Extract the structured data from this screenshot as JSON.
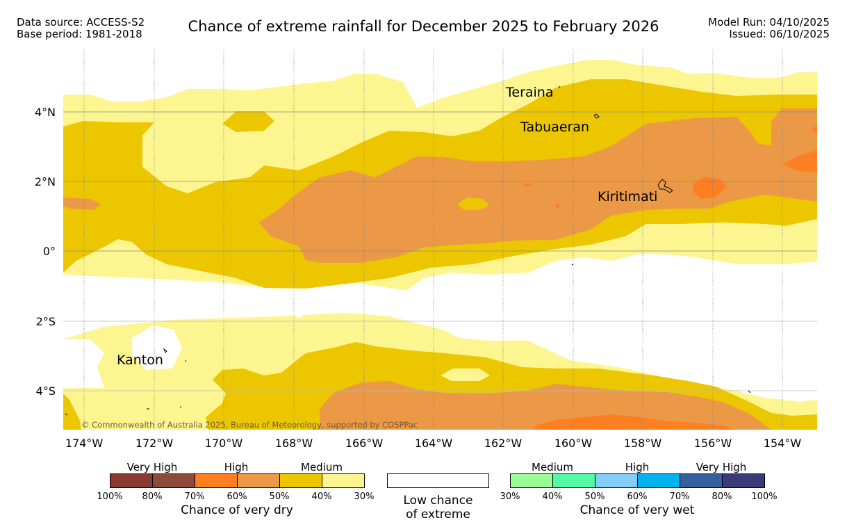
{
  "header": {
    "source_line": "Data source: ACCESS-S2",
    "base_line": "Base period: 1981-2018",
    "title": "Chance of extreme rainfall for December 2025 to February 2026",
    "model_run": "Model Run: 04/10/2025",
    "issued": "Issued: 06/10/2025"
  },
  "map": {
    "lon_labels": [
      "174°W",
      "172°W",
      "170°W",
      "168°W",
      "166°W",
      "164°W",
      "162°W",
      "160°W",
      "158°W",
      "156°W",
      "154°W"
    ],
    "lat_labels": [
      "4°N",
      "2°N",
      "0°",
      "2°S",
      "4°S"
    ],
    "places": [
      "Teraina",
      "Tabuaeran",
      "Kiritimati",
      "Kanton"
    ],
    "copyright": "© Commonwealth of Australia 2025, Bureau of Meteorology, supported by COSPPac",
    "colors": {
      "dry_medium_light": "#fdf58f",
      "dry_medium": "#ecc700",
      "dry_high_light": "#eb9947",
      "dry_high": "#fd7f22"
    }
  },
  "legend": {
    "dry": {
      "headings": [
        "Very High",
        "High",
        "Medium"
      ],
      "colors": [
        "#8b3a30",
        "#8c4b39",
        "#fd7f22",
        "#eb9947",
        "#ecc700",
        "#fdf58f"
      ],
      "ticks": [
        "100%",
        "80%",
        "70%",
        "60%",
        "50%",
        "40%",
        "30%"
      ],
      "caption": "Chance of very dry"
    },
    "low": {
      "caption_line1": "Low chance",
      "caption_line2": "of extreme"
    },
    "wet": {
      "headings": [
        "Medium",
        "High",
        "Very High"
      ],
      "colors": [
        "#9afc96",
        "#55f9a6",
        "#85cdf9",
        "#00b3ef",
        "#355f9d",
        "#3c3a78"
      ],
      "ticks": [
        "30%",
        "40%",
        "50%",
        "60%",
        "70%",
        "80%",
        "100%"
      ],
      "caption": "Chance of very wet"
    }
  }
}
